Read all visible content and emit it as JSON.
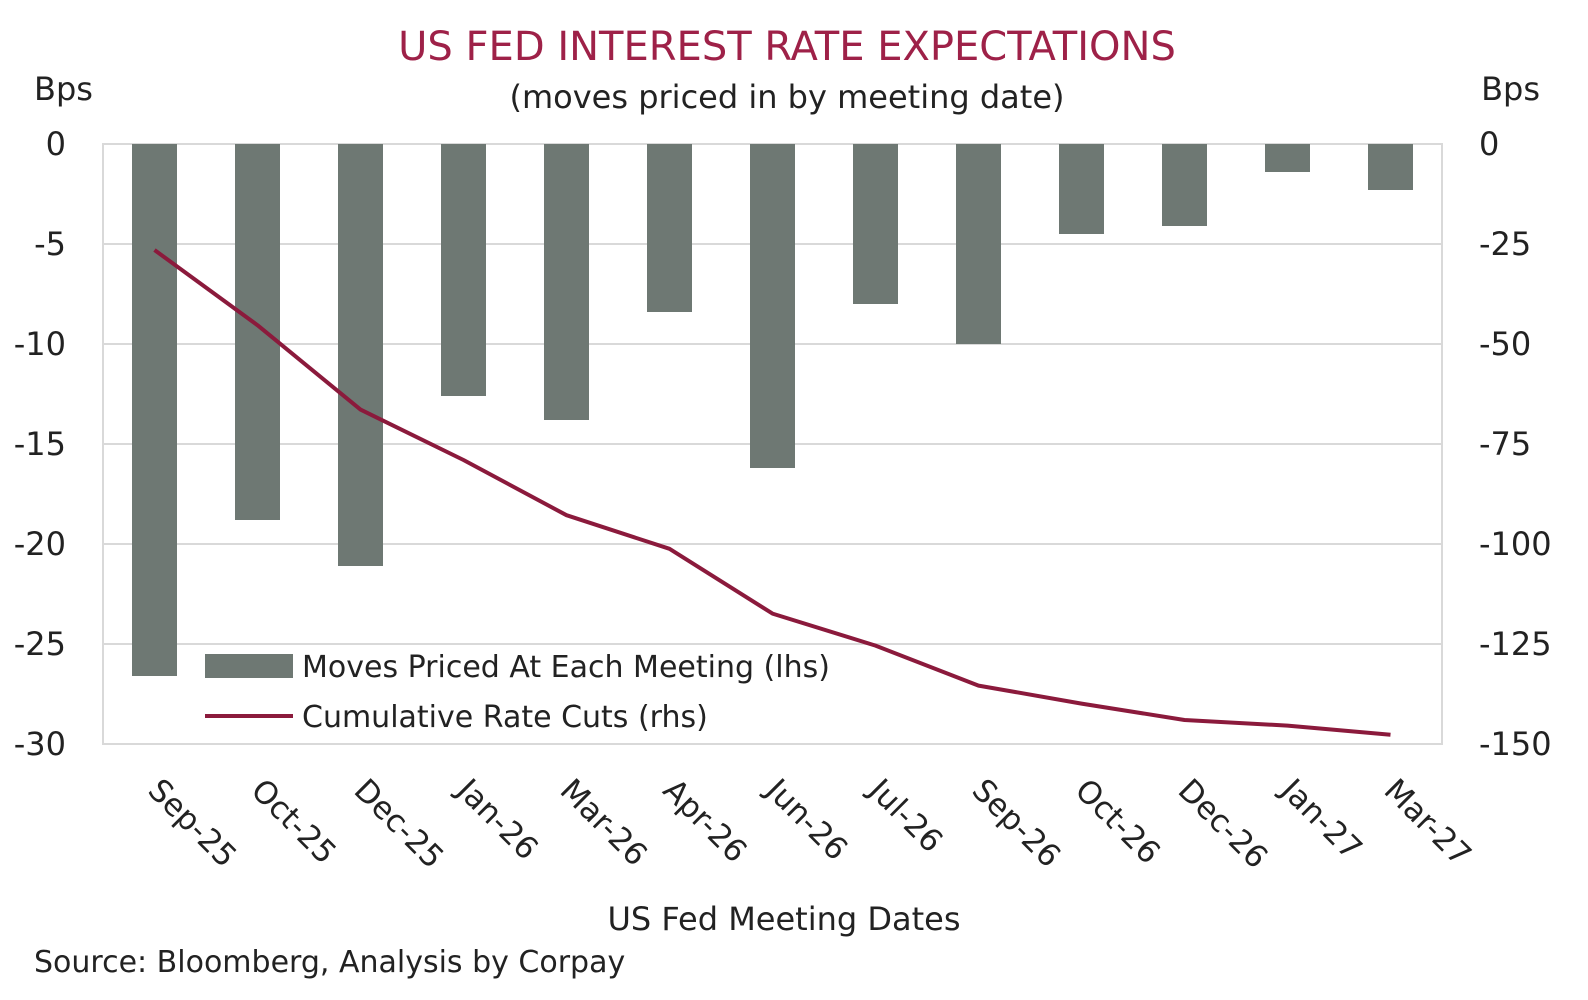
{
  "chart_data": {
    "type": "bar",
    "title": "US FED INTEREST RATE EXPECTATIONS",
    "subtitle": "(moves priced in by meeting date)",
    "y_left_unit": "Bps",
    "y_right_unit": "Bps",
    "xlabel": "US Fed Meeting Dates",
    "source": "Source: Bloomberg, Analysis by Corpay",
    "categories": [
      "Sep-25",
      "Oct-25",
      "Dec-25",
      "Jan-26",
      "Mar-26",
      "Apr-26",
      "Jun-26",
      "Jul-26",
      "Sep-26",
      "Oct-26",
      "Dec-26",
      "Jan-27",
      "Mar-27"
    ],
    "ylim_left": [
      -30,
      0
    ],
    "yticks_left": [
      "0",
      "-5",
      "-10",
      "-15",
      "-20",
      "-25",
      "-30"
    ],
    "ylim_right": [
      -150,
      0
    ],
    "yticks_right": [
      "0",
      "-25",
      "-50",
      "-75",
      "-100",
      "-125",
      "-150"
    ],
    "grid": true,
    "legend_position": "bottom-left",
    "series": [
      {
        "name": "Moves Priced At Each Meeting (lhs)",
        "type": "bar",
        "axis": "left",
        "color": "#6e7873",
        "values": [
          -26.6,
          -18.8,
          -21.1,
          -12.6,
          -13.8,
          -8.4,
          -16.2,
          -8.0,
          -10.0,
          -4.5,
          -4.1,
          -1.4,
          -2.3
        ]
      },
      {
        "name": "Cumulative Rate Cuts (rhs)",
        "type": "line",
        "axis": "right",
        "color": "#8b1a3c",
        "values": [
          -26.5,
          -45.3,
          -66.4,
          -79.0,
          -92.8,
          -101.2,
          -117.4,
          -125.4,
          -135.4,
          -139.9,
          -144.0,
          -145.4,
          -147.7
        ]
      }
    ]
  }
}
